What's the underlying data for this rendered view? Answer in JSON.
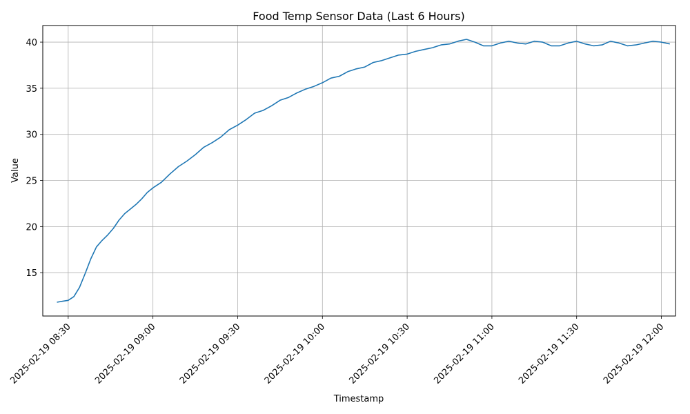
{
  "chart_data": {
    "type": "line",
    "title": "Food Temp Sensor Data (Last 6 Hours)",
    "xlabel": "Timestamp",
    "ylabel": "Value",
    "x_range": [
      "2025-02-19 08:21",
      "2025-02-19 12:05"
    ],
    "ylim": [
      10.3,
      41.8
    ],
    "grid": true,
    "line_color": "#1f77b4",
    "x_ticks": [
      {
        "label": "2025-02-19 08:30",
        "value": "2025-02-19 08:30"
      },
      {
        "label": "2025-02-19 09:00",
        "value": "2025-02-19 09:00"
      },
      {
        "label": "2025-02-19 09:30",
        "value": "2025-02-19 09:30"
      },
      {
        "label": "2025-02-19 10:00",
        "value": "2025-02-19 10:00"
      },
      {
        "label": "2025-02-19 10:30",
        "value": "2025-02-19 10:30"
      },
      {
        "label": "2025-02-19 11:00",
        "value": "2025-02-19 11:00"
      },
      {
        "label": "2025-02-19 11:30",
        "value": "2025-02-19 11:30"
      },
      {
        "label": "2025-02-19 12:00",
        "value": "2025-02-19 12:00"
      }
    ],
    "y_ticks": [
      {
        "label": "15",
        "value": 15
      },
      {
        "label": "20",
        "value": 20
      },
      {
        "label": "25",
        "value": 25
      },
      {
        "label": "30",
        "value": 30
      },
      {
        "label": "35",
        "value": 35
      },
      {
        "label": "40",
        "value": 40
      }
    ],
    "series": [
      {
        "x": [
          "2025-02-19 08:26",
          "2025-02-19 08:28",
          "2025-02-19 08:30",
          "2025-02-19 08:32",
          "2025-02-19 08:34",
          "2025-02-19 08:36",
          "2025-02-19 08:38",
          "2025-02-19 08:40",
          "2025-02-19 08:42",
          "2025-02-19 08:44",
          "2025-02-19 08:46",
          "2025-02-19 08:48",
          "2025-02-19 08:50",
          "2025-02-19 08:52",
          "2025-02-19 08:54",
          "2025-02-19 08:56",
          "2025-02-19 08:58",
          "2025-02-19 09:00",
          "2025-02-19 09:03",
          "2025-02-19 09:06",
          "2025-02-19 09:09",
          "2025-02-19 09:12",
          "2025-02-19 09:15",
          "2025-02-19 09:18",
          "2025-02-19 09:21",
          "2025-02-19 09:24",
          "2025-02-19 09:27",
          "2025-02-19 09:30",
          "2025-02-19 09:33",
          "2025-02-19 09:36",
          "2025-02-19 09:39",
          "2025-02-19 09:42",
          "2025-02-19 09:45",
          "2025-02-19 09:48",
          "2025-02-19 09:51",
          "2025-02-19 09:54",
          "2025-02-19 09:57",
          "2025-02-19 10:00",
          "2025-02-19 10:03",
          "2025-02-19 10:06",
          "2025-02-19 10:09",
          "2025-02-19 10:12",
          "2025-02-19 10:15",
          "2025-02-19 10:18",
          "2025-02-19 10:21",
          "2025-02-19 10:24",
          "2025-02-19 10:27",
          "2025-02-19 10:30",
          "2025-02-19 10:33",
          "2025-02-19 10:36",
          "2025-02-19 10:39",
          "2025-02-19 10:42",
          "2025-02-19 10:45",
          "2025-02-19 10:48",
          "2025-02-19 10:51",
          "2025-02-19 10:54",
          "2025-02-19 10:57",
          "2025-02-19 11:00",
          "2025-02-19 11:03",
          "2025-02-19 11:06",
          "2025-02-19 11:09",
          "2025-02-19 11:12",
          "2025-02-19 11:15",
          "2025-02-19 11:18",
          "2025-02-19 11:21",
          "2025-02-19 11:24",
          "2025-02-19 11:27",
          "2025-02-19 11:30",
          "2025-02-19 11:33",
          "2025-02-19 11:36",
          "2025-02-19 11:39",
          "2025-02-19 11:42",
          "2025-02-19 11:45",
          "2025-02-19 11:48",
          "2025-02-19 11:51",
          "2025-02-19 11:54",
          "2025-02-19 11:57",
          "2025-02-19 12:00",
          "2025-02-19 12:03"
        ],
        "y": [
          11.8,
          11.9,
          12.0,
          12.4,
          13.4,
          14.9,
          16.5,
          17.8,
          18.5,
          19.1,
          19.8,
          20.7,
          21.4,
          21.9,
          22.4,
          23.0,
          23.7,
          24.2,
          24.8,
          25.7,
          26.5,
          27.1,
          27.8,
          28.6,
          29.1,
          29.7,
          30.5,
          31.0,
          31.6,
          32.3,
          32.6,
          33.1,
          33.7,
          34.0,
          34.5,
          34.9,
          35.2,
          35.6,
          36.1,
          36.3,
          36.8,
          37.1,
          37.3,
          37.8,
          38.0,
          38.3,
          38.6,
          38.7,
          39.0,
          39.2,
          39.4,
          39.7,
          39.8,
          40.1,
          40.3,
          40.0,
          39.6,
          39.6,
          39.9,
          40.1,
          39.9,
          39.8,
          40.1,
          40.0,
          39.6,
          39.6,
          39.9,
          40.1,
          39.8,
          39.6,
          39.7,
          40.1,
          39.9,
          39.6,
          39.7,
          39.9,
          40.1,
          40.0,
          39.8
        ]
      }
    ]
  }
}
